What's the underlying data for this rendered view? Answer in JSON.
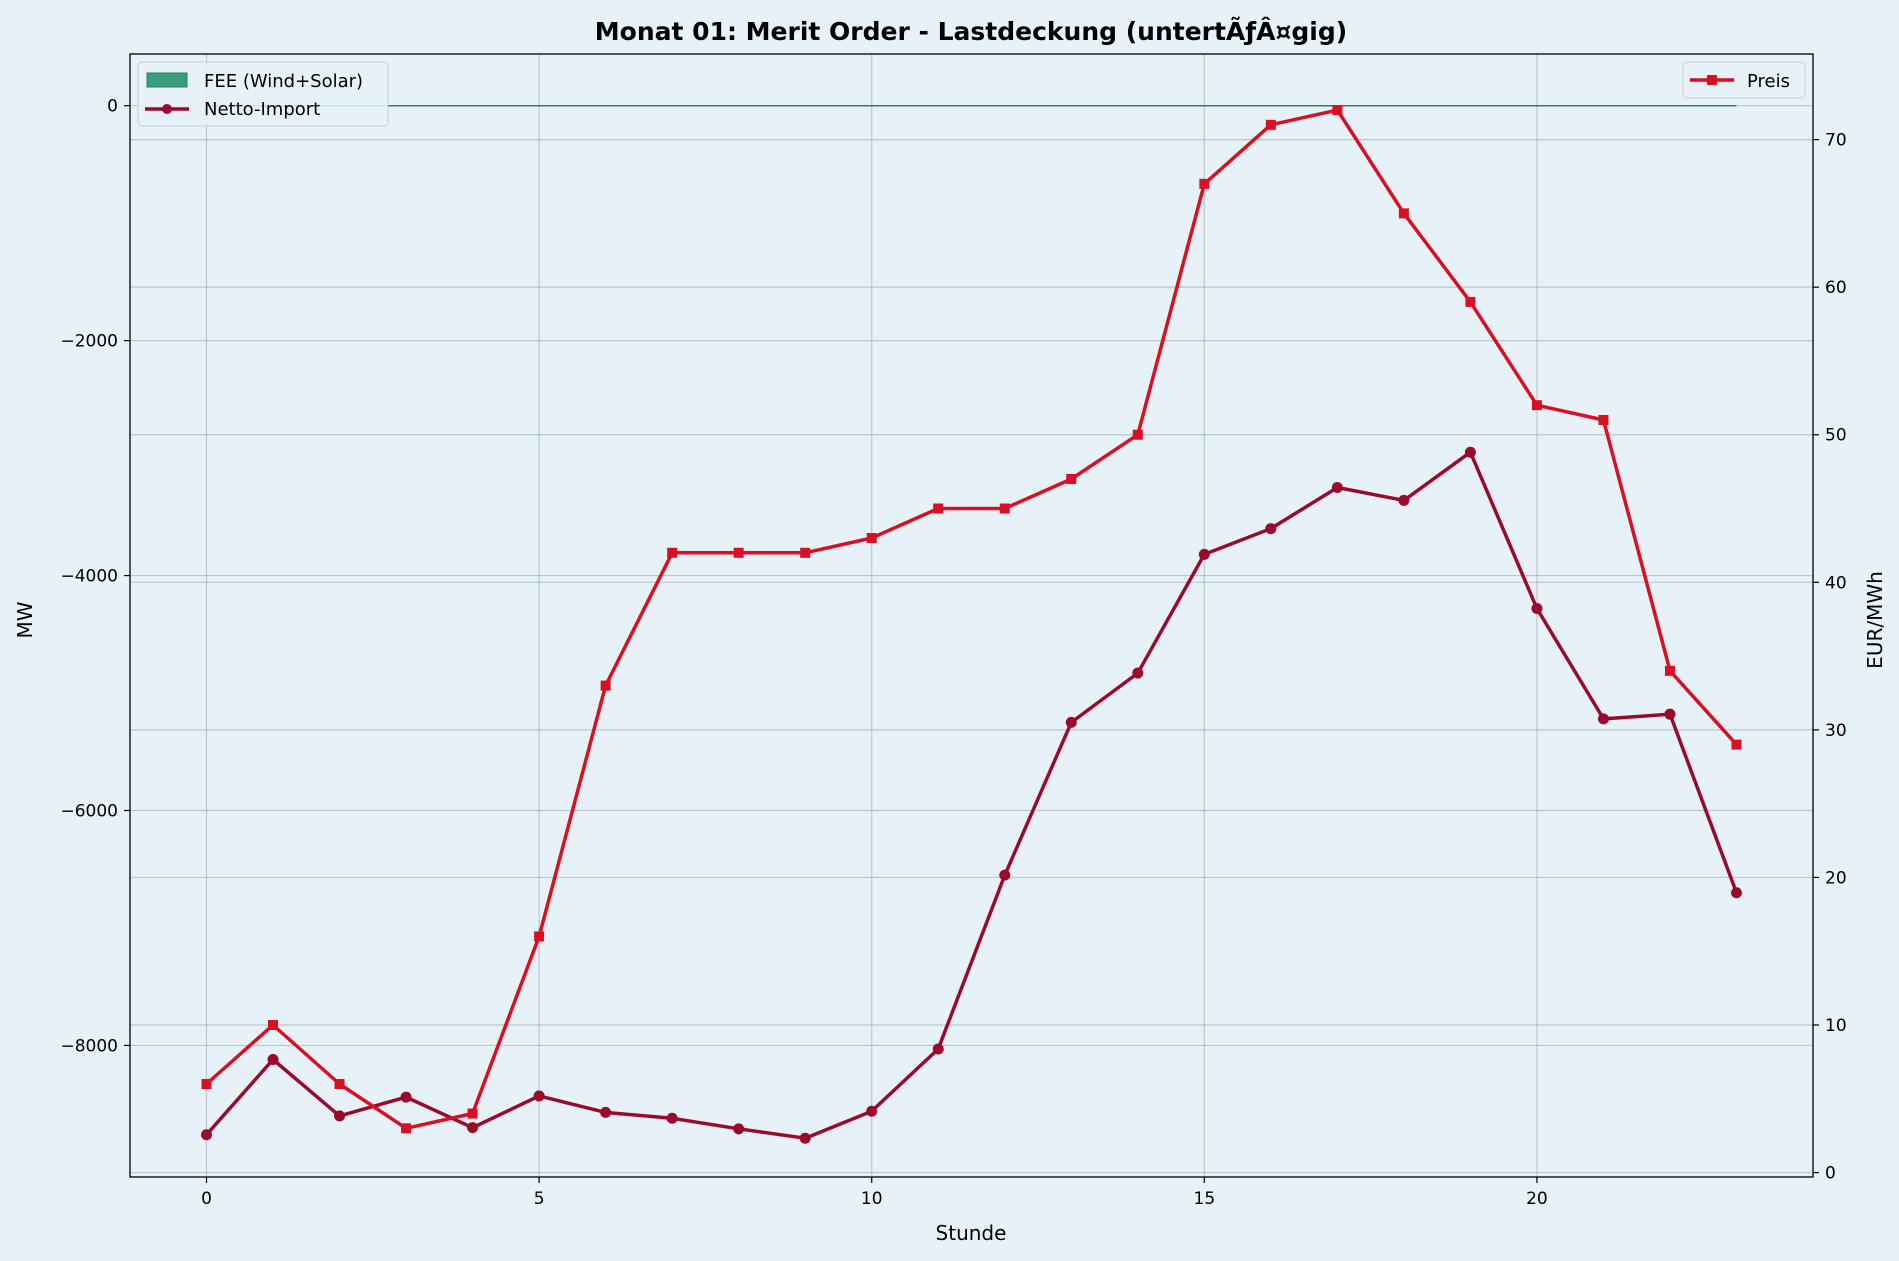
{
  "chart_data": {
    "type": "line",
    "title": "Monat 01: Merit Order - Lastdeckung (untertÃƒÂ¤gig)",
    "xlabel": "Stunde",
    "ylabel_left": "MW",
    "ylabel_right": "EUR/MWh",
    "x": [
      0,
      1,
      2,
      3,
      4,
      5,
      6,
      7,
      8,
      9,
      10,
      11,
      12,
      13,
      14,
      15,
      16,
      17,
      18,
      19,
      20,
      21,
      22,
      23
    ],
    "xlim": [
      -1.15,
      24.15
    ],
    "xticks": [
      0,
      5,
      10,
      15,
      20
    ],
    "ylim_left": [
      -9120,
      440
    ],
    "yticks_left": [
      0,
      -2000,
      -4000,
      -6000,
      -8000
    ],
    "ylim_right": [
      -0.3,
      75.8
    ],
    "yticks_right": [
      0,
      10,
      20,
      30,
      40,
      50,
      60,
      70
    ],
    "grid": true,
    "series": [
      {
        "name": "FEE (Wind+Solar)",
        "axis": "left",
        "kind": "area",
        "color": "#3a9e7e",
        "values": [
          0,
          0,
          0,
          0,
          0,
          0,
          0,
          0,
          0,
          0,
          0,
          0,
          0,
          0,
          0,
          0,
          0,
          0,
          0,
          0,
          0,
          0,
          0,
          0
        ]
      },
      {
        "name": "Netto-Import",
        "axis": "left",
        "kind": "line",
        "marker": "circle",
        "color": "#9b0a2a",
        "values": [
          -8760,
          -8120,
          -8600,
          -8440,
          -8700,
          -8430,
          -8570,
          -8620,
          -8710,
          -8790,
          -8560,
          -8030,
          -6550,
          -5250,
          -4830,
          -3820,
          -3600,
          -3250,
          -3360,
          -2950,
          -4280,
          -5220,
          -5180,
          -6700
        ]
      },
      {
        "name": "Preis",
        "axis": "right",
        "kind": "line",
        "marker": "square",
        "color": "#d90f22",
        "values": [
          6,
          10,
          6,
          3,
          4,
          16,
          33,
          42,
          42,
          42,
          43,
          45,
          45,
          47,
          50,
          67,
          71,
          72,
          65,
          59,
          52,
          51,
          34,
          29
        ]
      }
    ],
    "legend_left": "top-left",
    "legend_right": "top-right"
  }
}
